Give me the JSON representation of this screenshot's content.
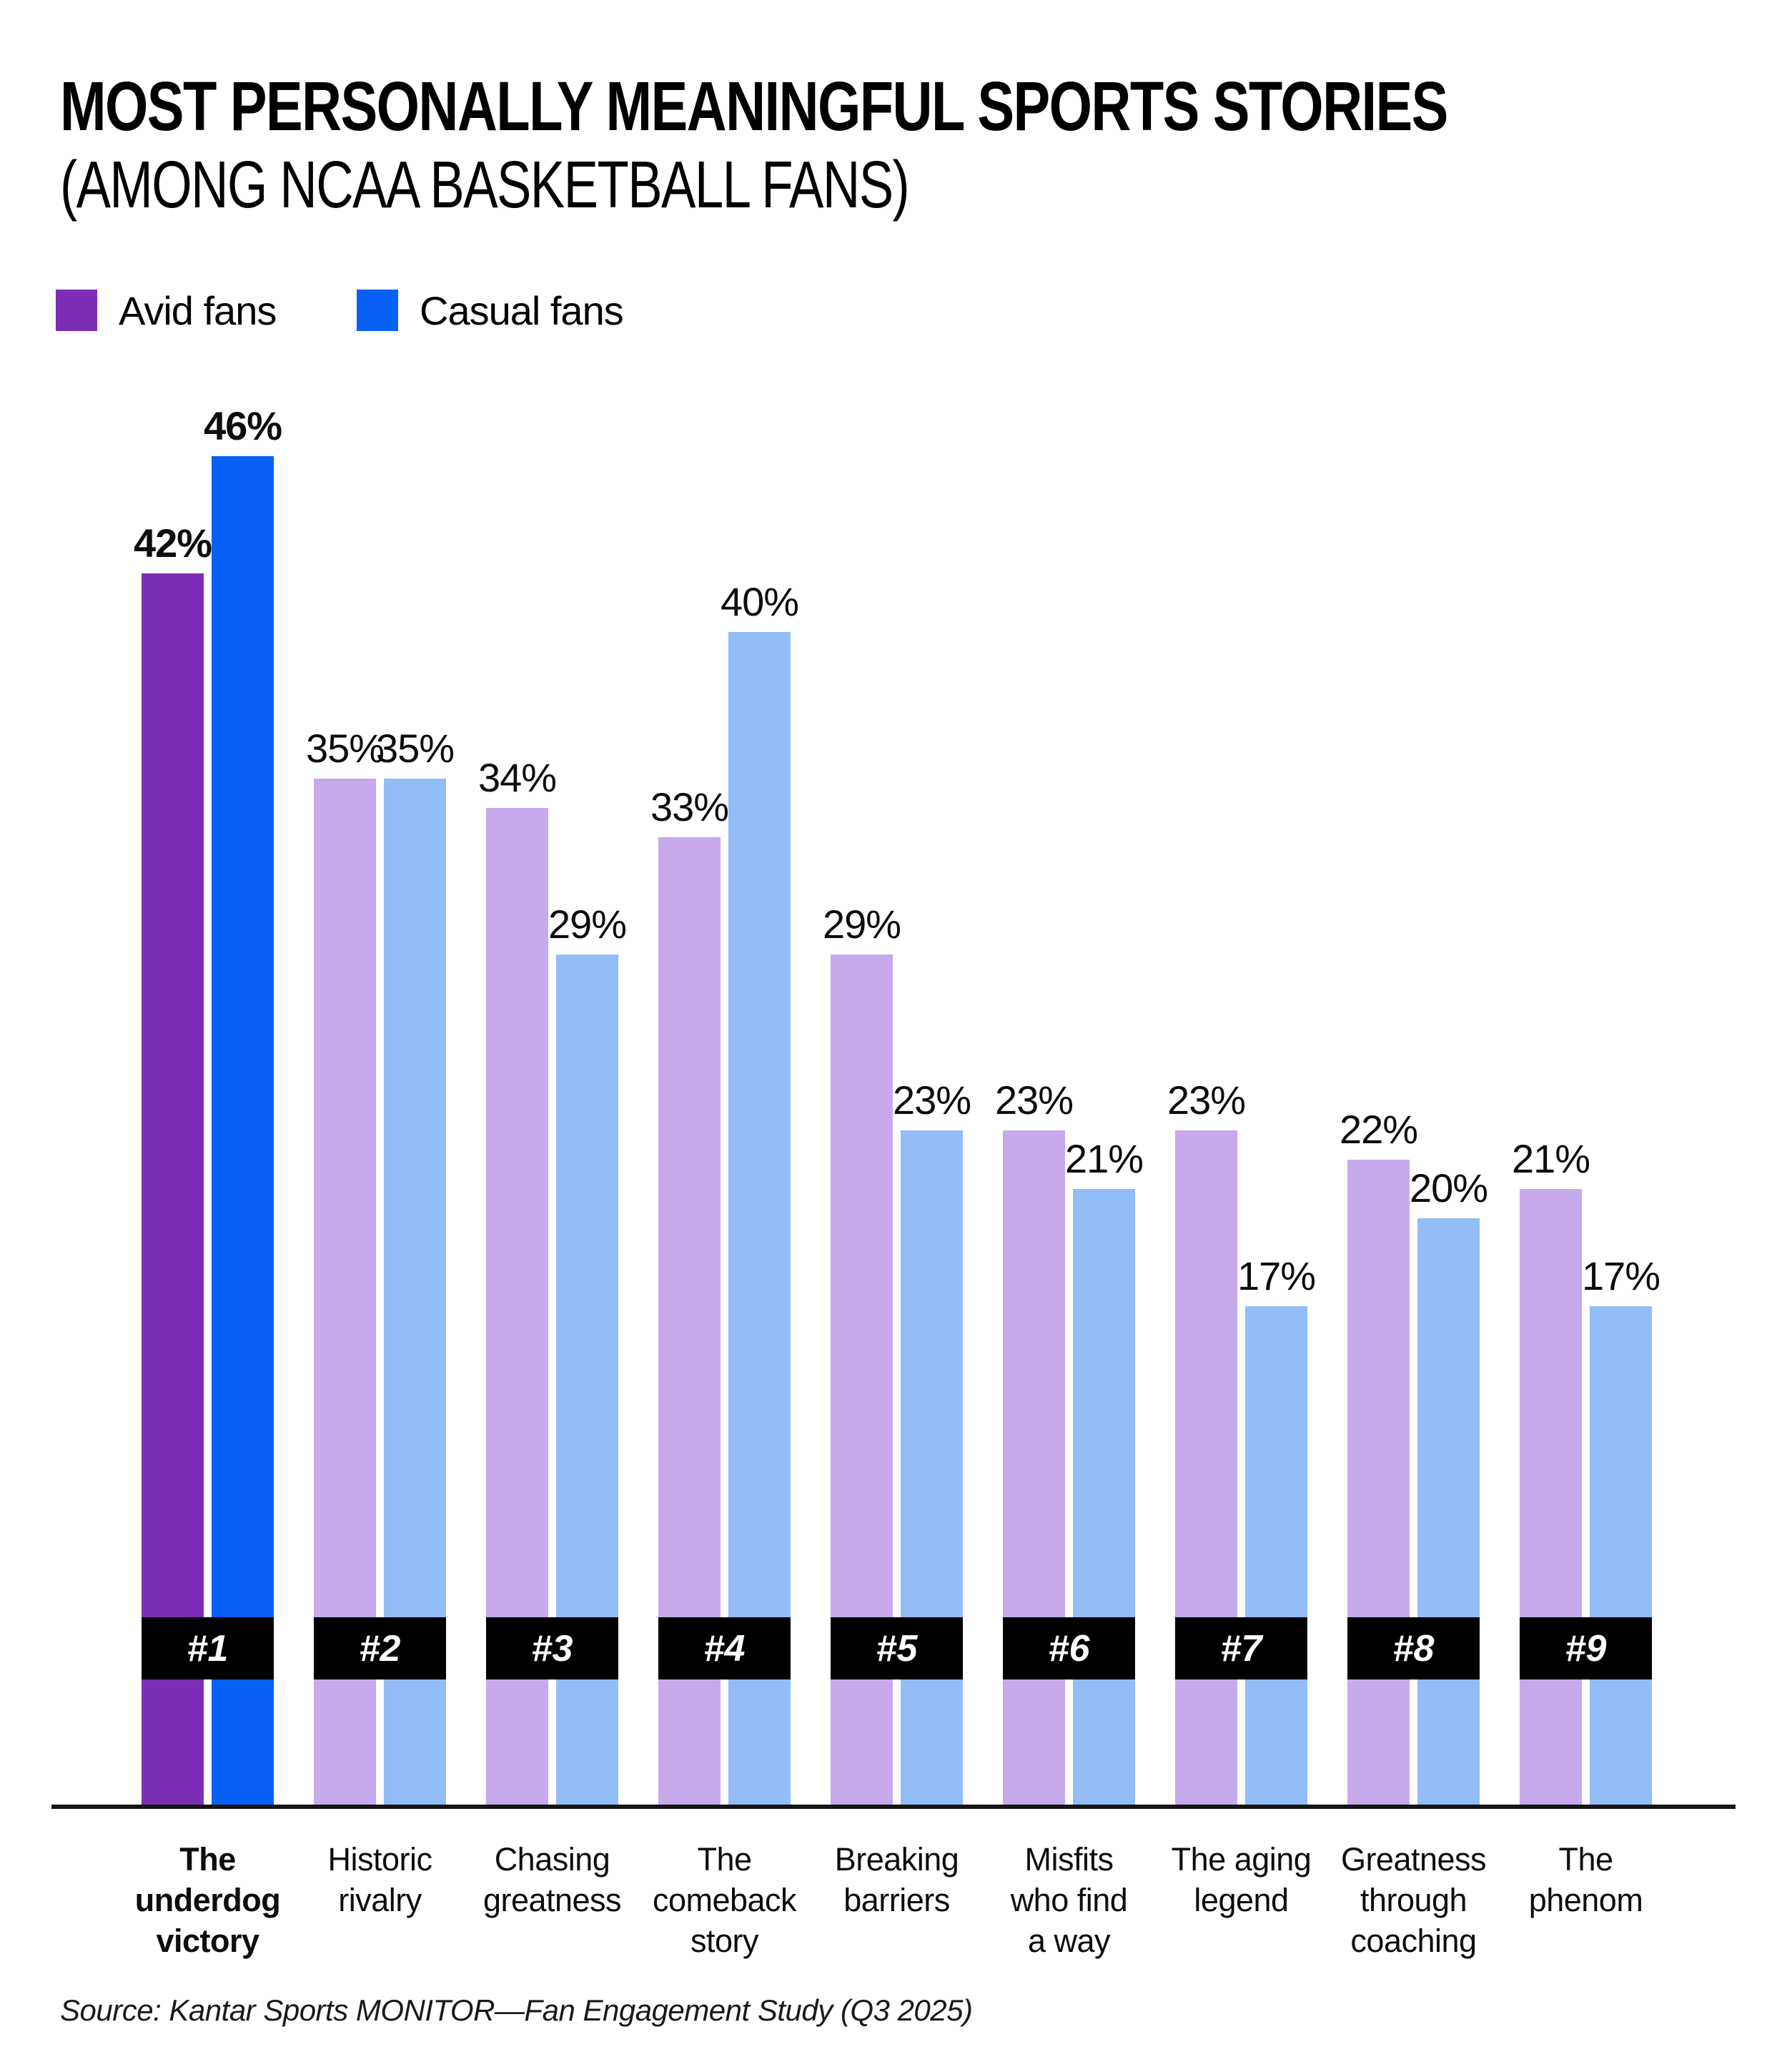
{
  "header": {
    "title": "MOST PERSONALLY MEANINGFUL SPORTS STORIES",
    "subtitle": "(AMONG NCAA BASKETBALL FANS)"
  },
  "legend": {
    "items": [
      {
        "label": "Avid fans",
        "color": "#7C2EB6"
      },
      {
        "label": "Casual fans",
        "color": "#0960F5"
      }
    ]
  },
  "colors": {
    "avid": "#7C2EB6",
    "casual": "#0960F5",
    "avid_muted": "#C6AAEC",
    "casual_muted": "#92BDF6",
    "ribbon": "#000000",
    "ribbon_text": "#FFFFFF"
  },
  "chart_data": {
    "type": "bar",
    "categories": [
      "The\nunderdog\nvictory",
      "Historic\nrivalry",
      "Chasing\ngreatness",
      "The\ncomeback\nstory",
      "Breaking\nbarriers",
      "Misfits\nwho find\na way",
      "The aging\nlegend",
      "Greatness\nthrough\ncoaching",
      "The\nphenom"
    ],
    "series": [
      {
        "name": "Avid fans",
        "values": [
          42,
          35,
          34,
          33,
          29,
          23,
          23,
          22,
          21
        ]
      },
      {
        "name": "Casual fans",
        "values": [
          46,
          35,
          29,
          40,
          23,
          21,
          17,
          20,
          17
        ]
      }
    ],
    "ranks": [
      "#1",
      "#2",
      "#3",
      "#4",
      "#5",
      "#6",
      "#7",
      "#8",
      "#9"
    ],
    "value_suffix": "%",
    "highlight_index": 0,
    "ylim": [
      0,
      50
    ],
    "grid": false,
    "legend_position": "top-left"
  },
  "footer": {
    "source": "Source: Kantar Sports MONITOR—Fan Engagement Study (Q3 2025)"
  }
}
